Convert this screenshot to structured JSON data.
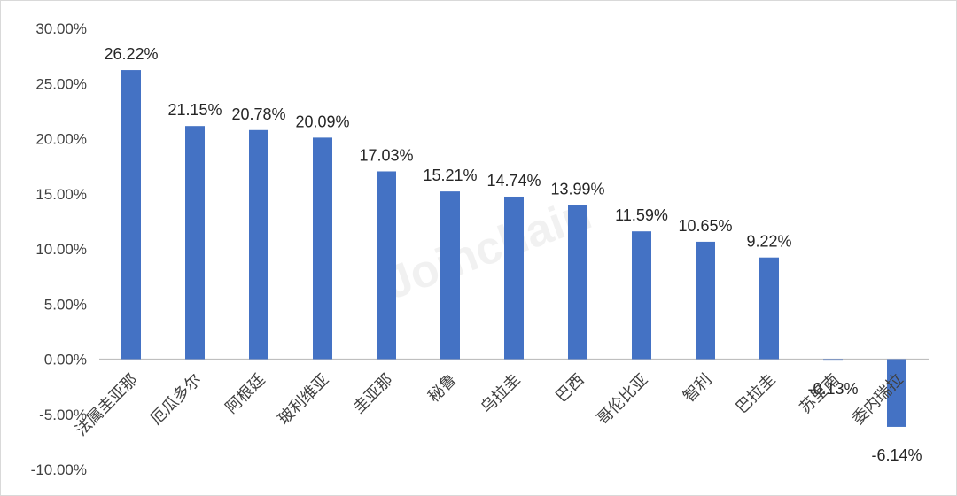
{
  "watermark": "Joinchain",
  "chart_data": {
    "type": "bar",
    "categories": [
      "法属圭亚那",
      "厄瓜多尔",
      "阿根廷",
      "玻利维亚",
      "圭亚那",
      "秘鲁",
      "乌拉圭",
      "巴西",
      "哥伦比亚",
      "智利",
      "巴拉圭",
      "苏里南",
      "委内瑞拉"
    ],
    "values": [
      26.22,
      21.15,
      20.78,
      20.09,
      17.03,
      15.21,
      14.74,
      13.99,
      11.59,
      10.65,
      9.22,
      -0.13,
      -6.14
    ],
    "data_labels": [
      "26.22%",
      "21.15%",
      "20.78%",
      "20.09%",
      "17.03%",
      "15.21%",
      "14.74%",
      "13.99%",
      "11.59%",
      "10.65%",
      "9.22%",
      "-0.13%",
      "-6.14%"
    ],
    "yticks": [
      "-10.00%",
      "-5.00%",
      "0.00%",
      "5.00%",
      "10.00%",
      "15.00%",
      "20.00%",
      "25.00%",
      "30.00%"
    ],
    "ylim": [
      -10,
      30
    ],
    "bar_color": "#4472c4",
    "title": "",
    "xlabel": "",
    "ylabel": "",
    "grid": false,
    "legend": "none"
  }
}
